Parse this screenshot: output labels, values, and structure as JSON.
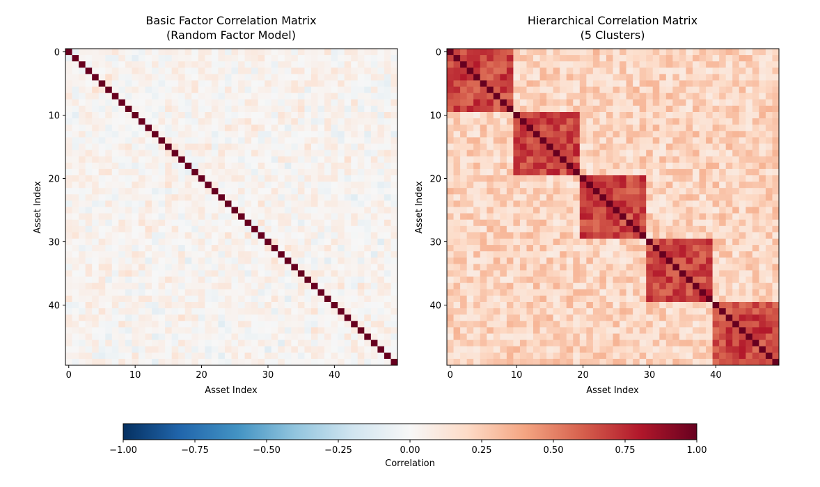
{
  "chart_data": [
    {
      "type": "heatmap",
      "title": [
        "Basic Factor Correlation Matrix",
        "(Random Factor Model)"
      ],
      "xlabel": "Asset Index",
      "ylabel": "Asset Index",
      "size": 50,
      "model": "random-factor",
      "off_diagonal_range": [
        -0.25,
        0.35
      ],
      "diagonal_value": 1.0,
      "xticks": [
        0,
        10,
        20,
        30,
        40
      ],
      "yticks": [
        0,
        10,
        20,
        30,
        40
      ],
      "xtick_labels": [
        "0",
        "10",
        "20",
        "30",
        "40"
      ],
      "ytick_labels": [
        "0",
        "10",
        "20",
        "30",
        "40"
      ]
    },
    {
      "type": "heatmap",
      "title": [
        "Hierarchical Correlation Matrix",
        "(5 Clusters)"
      ],
      "xlabel": "Asset Index",
      "ylabel": "Asset Index",
      "size": 50,
      "model": "hierarchical",
      "clusters": 5,
      "cluster_size": 10,
      "within_cluster_range": [
        0.55,
        0.8
      ],
      "between_cluster_range": [
        0.08,
        0.35
      ],
      "diagonal_value": 1.0,
      "xticks": [
        0,
        10,
        20,
        30,
        40
      ],
      "yticks": [
        0,
        10,
        20,
        30,
        40
      ],
      "xtick_labels": [
        "0",
        "10",
        "20",
        "30",
        "40"
      ],
      "ytick_labels": [
        "0",
        "10",
        "20",
        "30",
        "40"
      ]
    }
  ],
  "colorbar": {
    "label": "Correlation",
    "range": [
      -1.0,
      1.0
    ],
    "colormap": "RdBu_r",
    "ticks": [
      -1.0,
      -0.75,
      -0.5,
      -0.25,
      0.0,
      0.25,
      0.5,
      0.75,
      1.0
    ],
    "tick_labels": [
      "−1.00",
      "−0.75",
      "−0.50",
      "−0.25",
      "0.00",
      "0.25",
      "0.50",
      "0.75",
      "1.00"
    ]
  }
}
